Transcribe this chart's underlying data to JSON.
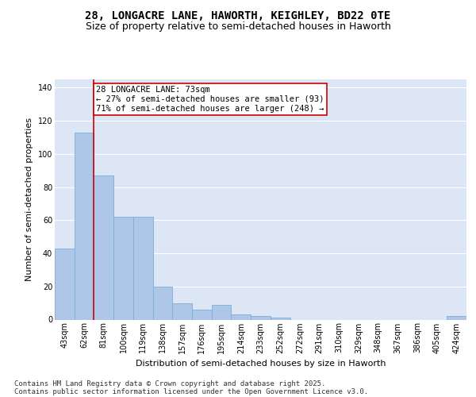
{
  "title_line1": "28, LONGACRE LANE, HAWORTH, KEIGHLEY, BD22 0TE",
  "title_line2": "Size of property relative to semi-detached houses in Haworth",
  "xlabel": "Distribution of semi-detached houses by size in Haworth",
  "ylabel": "Number of semi-detached properties",
  "categories": [
    "43sqm",
    "62sqm",
    "81sqm",
    "100sqm",
    "119sqm",
    "138sqm",
    "157sqm",
    "176sqm",
    "195sqm",
    "214sqm",
    "233sqm",
    "252sqm",
    "272sqm",
    "291sqm",
    "310sqm",
    "329sqm",
    "348sqm",
    "367sqm",
    "386sqm",
    "405sqm",
    "424sqm"
  ],
  "values": [
    43,
    113,
    87,
    62,
    62,
    20,
    10,
    6,
    9,
    3,
    2,
    1,
    0,
    0,
    0,
    0,
    0,
    0,
    0,
    0,
    2
  ],
  "bar_color": "#aec6e8",
  "bar_edge_color": "#7aafd4",
  "redline_index": 1.5,
  "annotation_title": "28 LONGACRE LANE: 73sqm",
  "annotation_line1": "← 27% of semi-detached houses are smaller (93)",
  "annotation_line2": "71% of semi-detached houses are larger (248) →",
  "annotation_box_color": "#ffffff",
  "annotation_box_edge": "#cc0000",
  "redline_color": "#cc0000",
  "ylim": [
    0,
    145
  ],
  "yticks": [
    0,
    20,
    40,
    60,
    80,
    100,
    120,
    140
  ],
  "background_color": "#dce6f5",
  "grid_color": "#ffffff",
  "fig_background": "#ffffff",
  "footer_line1": "Contains HM Land Registry data © Crown copyright and database right 2025.",
  "footer_line2": "Contains public sector information licensed under the Open Government Licence v3.0.",
  "title_fontsize": 10,
  "subtitle_fontsize": 9,
  "axis_label_fontsize": 8,
  "tick_fontsize": 7,
  "annotation_fontsize": 7.5,
  "footer_fontsize": 6.5
}
